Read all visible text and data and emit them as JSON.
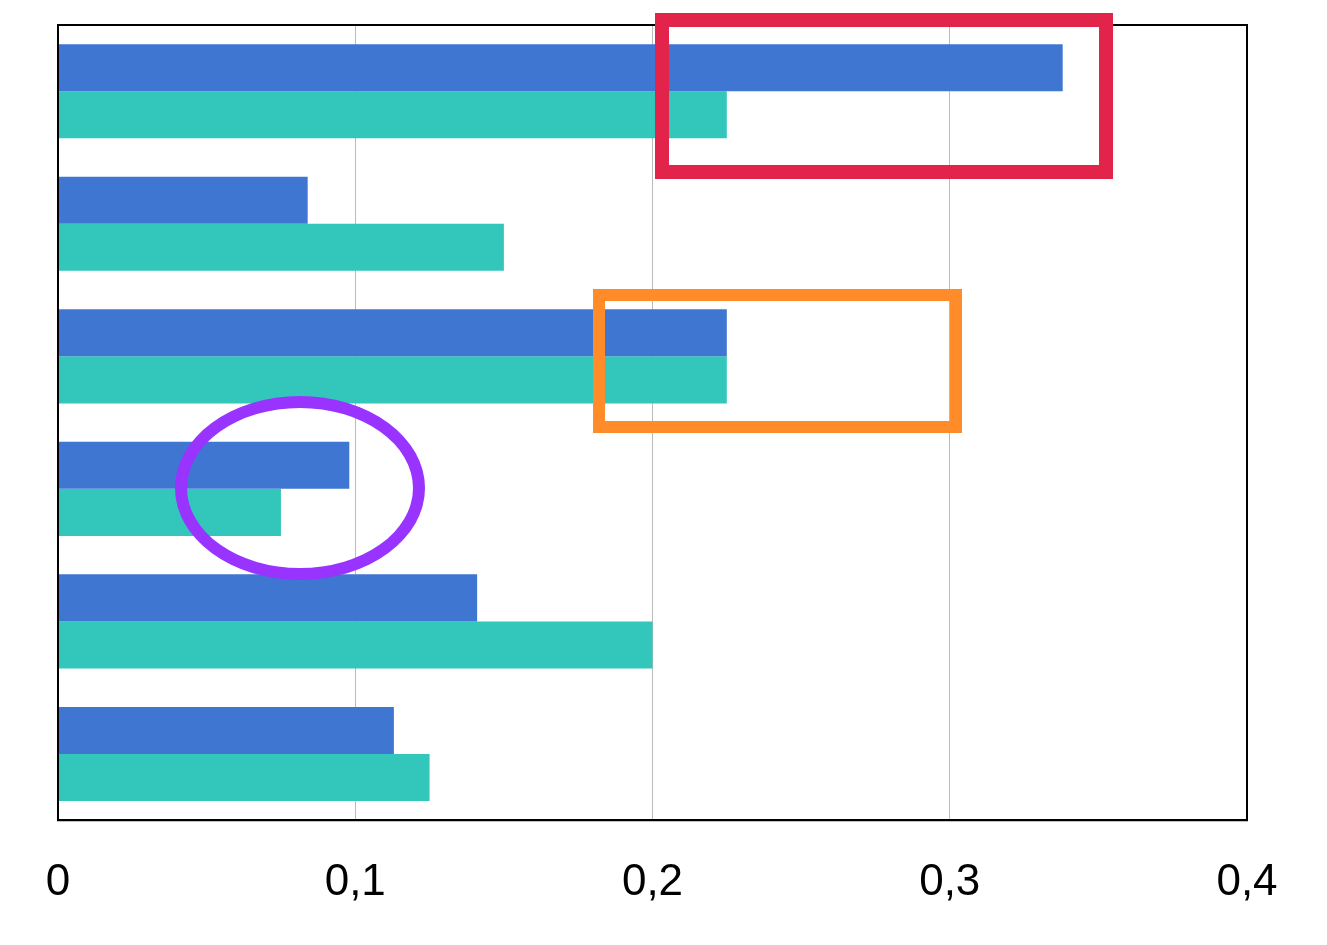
{
  "chart_data": {
    "type": "bar",
    "orientation": "horizontal",
    "categories": [
      null,
      null,
      null,
      null,
      null,
      null
    ],
    "series": [
      {
        "color": "#3f76d2",
        "values": [
          0.338,
          0.084,
          0.225,
          0.098,
          0.141,
          0.113
        ]
      },
      {
        "color": "#33c6bb",
        "values": [
          0.225,
          0.15,
          0.225,
          0.075,
          0.2,
          0.125
        ]
      }
    ],
    "xlim": [
      0,
      0.4
    ],
    "xticks": [
      0,
      {
        "value": 0.1,
        "label": "0,1"
      },
      {
        "value": 0.2,
        "label": "0,2"
      },
      {
        "value": 0.3,
        "label": "0,3"
      },
      {
        "value": 0.4,
        "label": "0,4"
      }
    ],
    "grid": "x",
    "legend": false,
    "tick_labels": "x"
  }
}
